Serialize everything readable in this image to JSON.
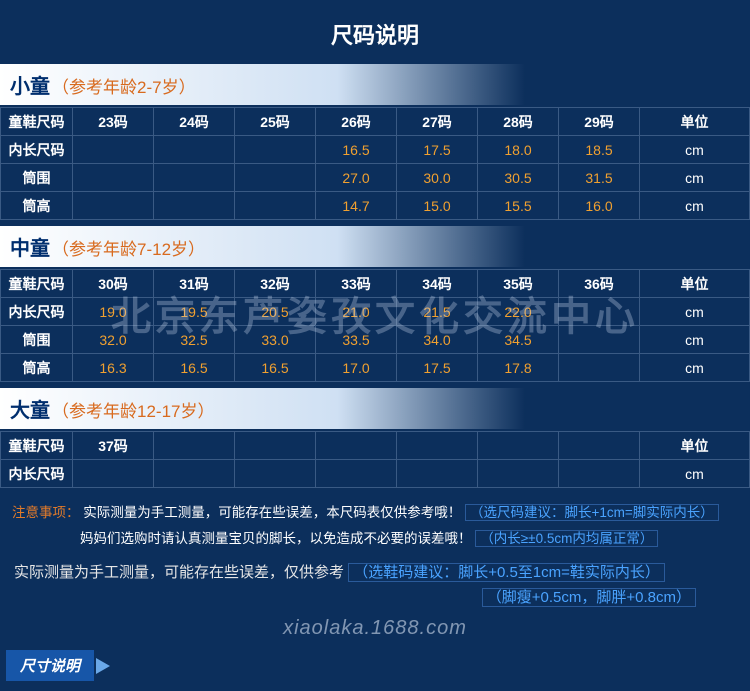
{
  "title": "尺码说明",
  "sections": [
    {
      "category": "小童",
      "age": "（参考年龄2-7岁）",
      "sizes": [
        "23码",
        "24码",
        "25码",
        "26码",
        "27码",
        "28码",
        "29码"
      ],
      "rows": [
        {
          "label": "内长尺码",
          "values": [
            "",
            "",
            "",
            "16.5",
            "17.5",
            "18.0",
            "18.5"
          ],
          "unit": "cm"
        },
        {
          "label": "筒围",
          "values": [
            "",
            "",
            "",
            "27.0",
            "30.0",
            "30.5",
            "31.5"
          ],
          "unit": "cm"
        },
        {
          "label": "筒高",
          "values": [
            "",
            "",
            "",
            "14.7",
            "15.0",
            "15.5",
            "16.0"
          ],
          "unit": "cm"
        }
      ]
    },
    {
      "category": "中童",
      "age": "（参考年龄7-12岁）",
      "sizes": [
        "30码",
        "31码",
        "32码",
        "33码",
        "34码",
        "35码",
        "36码"
      ],
      "rows": [
        {
          "label": "内长尺码",
          "values": [
            "19.0",
            "19.5",
            "20.5",
            "21.0",
            "21.5",
            "22.0",
            ""
          ],
          "unit": "cm"
        },
        {
          "label": "筒围",
          "values": [
            "32.0",
            "32.5",
            "33.0",
            "33.5",
            "34.0",
            "34.5",
            ""
          ],
          "unit": "cm"
        },
        {
          "label": "筒高",
          "values": [
            "16.3",
            "16.5",
            "16.5",
            "17.0",
            "17.5",
            "17.8",
            ""
          ],
          "unit": "cm"
        }
      ]
    },
    {
      "category": "大童",
      "age": "（参考年龄12-17岁）",
      "sizes": [
        "37码",
        "",
        "",
        "",
        "",
        "",
        ""
      ],
      "rows": [
        {
          "label": "内长尺码",
          "values": [
            "",
            "",
            "",
            "",
            "",
            "",
            ""
          ],
          "unit": "cm"
        }
      ]
    }
  ],
  "rowHeaderLabel": "童鞋尺码",
  "unitHeader": "单位",
  "notice": {
    "label": "注意事项：",
    "line1a": "实际测量为手工测量，可能存在些误差，本尺码表仅供参考哦！",
    "rec1": "（选尺码建议：脚长+1cm=脚实际内长）",
    "line2a": "妈妈们选购时请认真测量宝贝的脚长，以免造成不必要的误差哦！",
    "rec2": "（内长≥±0.5cm内均属正常）"
  },
  "note2": {
    "text": "实际测量为手工测量，可能存在些误差，仅供参考",
    "rec1": "（选鞋码建议：脚长+0.5至1cm=鞋实际内长）",
    "rec2": "（脚瘦+0.5cm，脚胖+0.8cm）"
  },
  "watermark": "北京东芦姿孜文化交流中心",
  "watermarkUrl": "xiaolaka.1688.com",
  "footerTab": "尺寸说明"
}
